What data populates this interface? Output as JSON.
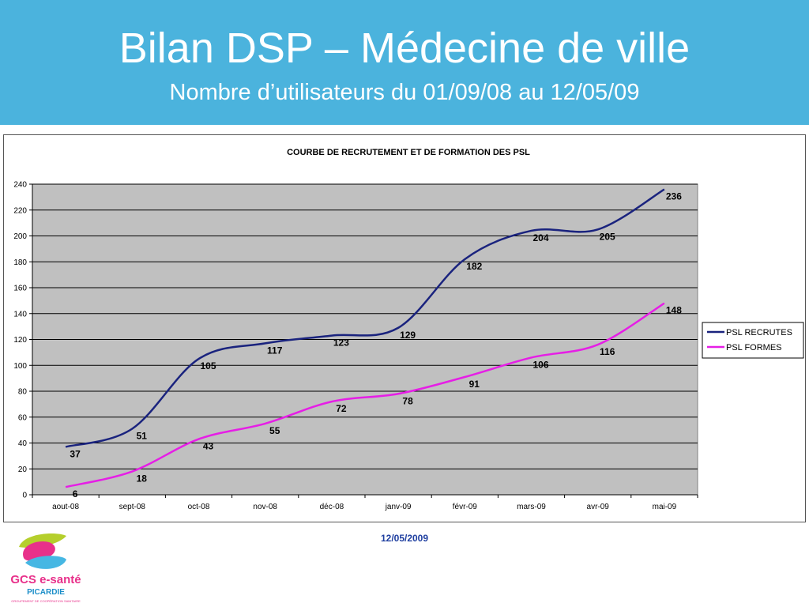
{
  "slide": {
    "title": "Bilan DSP – Médecine de ville",
    "subtitle": "Nombre d’utilisateurs du 01/09/08 au 12/05/09",
    "date": "12/05/2009"
  },
  "logo": {
    "line1": "GCS e-santé",
    "line2": "PICARDIE",
    "line3": "GROUPEMENT DE COOPÉRATION SANITAIRE"
  },
  "colors": {
    "header": "#4bb3dd",
    "plot_bg": "#c0c0c0",
    "recrutes": "#1a237e",
    "formes": "#e61ee6"
  },
  "chart_data": {
    "type": "line",
    "title": "COURBE DE RECRUTEMENT ET DE FORMATION DES PSL",
    "categories": [
      "aout-08",
      "sept-08",
      "oct-08",
      "nov-08",
      "déc-08",
      "janv-09",
      "févr-09",
      "mars-09",
      "avr-09",
      "mai-09"
    ],
    "series": [
      {
        "name": "PSL RECRUTES",
        "values": [
          37,
          51,
          105,
          117,
          123,
          129,
          182,
          204,
          205,
          236
        ]
      },
      {
        "name": "PSL FORMES",
        "values": [
          6,
          18,
          43,
          55,
          72,
          78,
          91,
          106,
          116,
          148
        ]
      }
    ],
    "ylim": [
      0,
      240
    ],
    "yticks": [
      0,
      20,
      40,
      60,
      80,
      100,
      120,
      140,
      160,
      180,
      200,
      220,
      240
    ],
    "grid": true,
    "legend": "right",
    "xlabel": "",
    "ylabel": ""
  }
}
